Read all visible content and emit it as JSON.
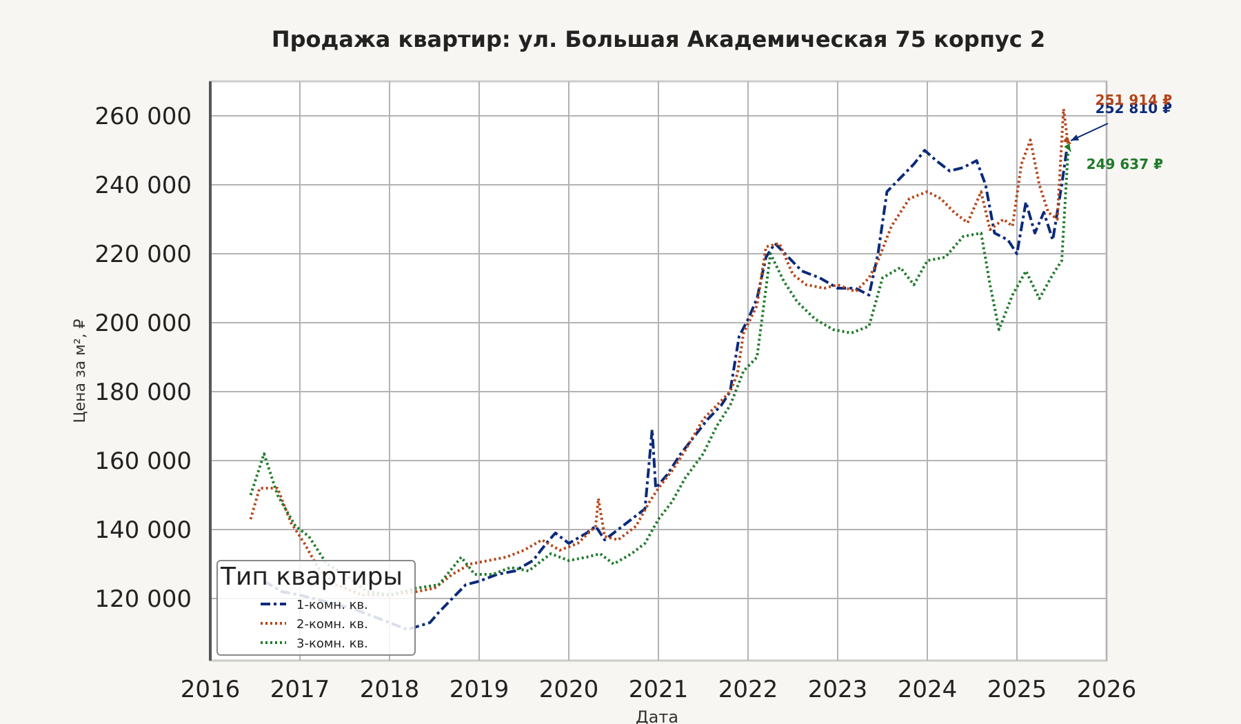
{
  "chart_data": {
    "type": "line",
    "title": "Продажа квартир: ул. Большая Академическая 75 корпус 2",
    "xlabel": "Дата",
    "ylabel": "Цена за м², ₽",
    "xlim": [
      2016,
      2026
    ],
    "ylim": [
      102000,
      270000
    ],
    "x_ticks": [
      "2016",
      "2017",
      "2018",
      "2019",
      "2020",
      "2021",
      "2022",
      "2023",
      "2024",
      "2025",
      "2026"
    ],
    "y_ticks": [
      {
        "value": 120000,
        "label": "120 000"
      },
      {
        "value": 140000,
        "label": "140 000"
      },
      {
        "value": 160000,
        "label": "160 000"
      },
      {
        "value": 180000,
        "label": "180 000"
      },
      {
        "value": 200000,
        "label": "200 000"
      },
      {
        "value": 220000,
        "label": "220 000"
      },
      {
        "value": 240000,
        "label": "240 000"
      },
      {
        "value": 260000,
        "label": "260 000"
      }
    ],
    "grid": true,
    "legend": {
      "title": "Тип квартиры",
      "placement": "bottom-left"
    },
    "series": [
      {
        "name": "1-комн. кв.",
        "color": "#0a2a7a",
        "style": "dashdot",
        "end_label": "252 810 ₽",
        "points": [
          [
            2016.6,
            125000
          ],
          [
            2016.8,
            122000
          ],
          [
            2017.0,
            121000
          ],
          [
            2017.3,
            119000
          ],
          [
            2017.6,
            117000
          ],
          [
            2017.9,
            114000
          ],
          [
            2018.2,
            111000
          ],
          [
            2018.45,
            113000
          ],
          [
            2018.55,
            116000
          ],
          [
            2018.7,
            120000
          ],
          [
            2018.85,
            124000
          ],
          [
            2019.0,
            125000
          ],
          [
            2019.2,
            127000
          ],
          [
            2019.4,
            128000
          ],
          [
            2019.6,
            131000
          ],
          [
            2019.75,
            136000
          ],
          [
            2019.85,
            139000
          ],
          [
            2020.0,
            136000
          ],
          [
            2020.2,
            139000
          ],
          [
            2020.3,
            141000
          ],
          [
            2020.4,
            137000
          ],
          [
            2020.5,
            139000
          ],
          [
            2020.7,
            143000
          ],
          [
            2020.85,
            146000
          ],
          [
            2020.93,
            169000
          ],
          [
            2020.97,
            152000
          ],
          [
            2021.1,
            156000
          ],
          [
            2021.25,
            162000
          ],
          [
            2021.4,
            167000
          ],
          [
            2021.55,
            172000
          ],
          [
            2021.7,
            176000
          ],
          [
            2021.8,
            180000
          ],
          [
            2021.9,
            196000
          ],
          [
            2022.0,
            201000
          ],
          [
            2022.1,
            207000
          ],
          [
            2022.2,
            219000
          ],
          [
            2022.3,
            223000
          ],
          [
            2022.45,
            219000
          ],
          [
            2022.6,
            215000
          ],
          [
            2022.8,
            213000
          ],
          [
            2023.0,
            210000
          ],
          [
            2023.2,
            210000
          ],
          [
            2023.35,
            208000
          ],
          [
            2023.45,
            220000
          ],
          [
            2023.55,
            238000
          ],
          [
            2023.7,
            242000
          ],
          [
            2023.85,
            246000
          ],
          [
            2023.97,
            250000
          ],
          [
            2024.1,
            247000
          ],
          [
            2024.25,
            244000
          ],
          [
            2024.4,
            245000
          ],
          [
            2024.55,
            247000
          ],
          [
            2024.65,
            240000
          ],
          [
            2024.75,
            226000
          ],
          [
            2024.9,
            224000
          ],
          [
            2025.0,
            220000
          ],
          [
            2025.1,
            235000
          ],
          [
            2025.2,
            226000
          ],
          [
            2025.3,
            232000
          ],
          [
            2025.4,
            224000
          ],
          [
            2025.5,
            240000
          ],
          [
            2025.57,
            252810
          ]
        ]
      },
      {
        "name": "2-комн. кв.",
        "color": "#b5461a",
        "style": "dotted",
        "end_label": "251 914 ₽",
        "points": [
          [
            2016.45,
            143000
          ],
          [
            2016.55,
            152000
          ],
          [
            2016.75,
            152000
          ],
          [
            2016.9,
            142000
          ],
          [
            2017.05,
            136000
          ],
          [
            2017.2,
            129000
          ],
          [
            2017.4,
            124000
          ],
          [
            2017.7,
            121000
          ],
          [
            2018.0,
            121000
          ],
          [
            2018.3,
            122000
          ],
          [
            2018.5,
            123000
          ],
          [
            2018.7,
            127000
          ],
          [
            2018.9,
            130000
          ],
          [
            2019.1,
            131000
          ],
          [
            2019.3,
            132000
          ],
          [
            2019.5,
            134000
          ],
          [
            2019.7,
            137000
          ],
          [
            2019.9,
            134000
          ],
          [
            2020.1,
            136000
          ],
          [
            2020.3,
            141000
          ],
          [
            2020.33,
            149000
          ],
          [
            2020.4,
            138000
          ],
          [
            2020.55,
            137000
          ],
          [
            2020.75,
            141000
          ],
          [
            2020.9,
            148000
          ],
          [
            2021.0,
            152000
          ],
          [
            2021.15,
            157000
          ],
          [
            2021.3,
            163000
          ],
          [
            2021.5,
            172000
          ],
          [
            2021.65,
            176000
          ],
          [
            2021.8,
            180000
          ],
          [
            2021.88,
            185000
          ],
          [
            2021.95,
            197000
          ],
          [
            2022.1,
            205000
          ],
          [
            2022.2,
            222000
          ],
          [
            2022.35,
            223000
          ],
          [
            2022.5,
            214000
          ],
          [
            2022.65,
            211000
          ],
          [
            2022.85,
            210000
          ],
          [
            2023.0,
            211000
          ],
          [
            2023.2,
            209000
          ],
          [
            2023.35,
            213000
          ],
          [
            2023.45,
            218000
          ],
          [
            2023.6,
            228000
          ],
          [
            2023.8,
            236000
          ],
          [
            2024.0,
            238000
          ],
          [
            2024.15,
            236000
          ],
          [
            2024.3,
            232000
          ],
          [
            2024.45,
            229000
          ],
          [
            2024.6,
            238000
          ],
          [
            2024.7,
            227000
          ],
          [
            2024.85,
            230000
          ],
          [
            2024.95,
            228000
          ],
          [
            2025.05,
            246000
          ],
          [
            2025.15,
            253000
          ],
          [
            2025.25,
            240000
          ],
          [
            2025.35,
            232000
          ],
          [
            2025.45,
            230000
          ],
          [
            2025.52,
            262000
          ],
          [
            2025.57,
            251914
          ]
        ]
      },
      {
        "name": "3-комн. кв.",
        "color": "#1f7a2a",
        "style": "dotted",
        "end_label": "249 637 ₽",
        "points": [
          [
            2016.45,
            150000
          ],
          [
            2016.6,
            162000
          ],
          [
            2016.75,
            150000
          ],
          [
            2016.95,
            141000
          ],
          [
            2017.1,
            138000
          ],
          [
            2017.3,
            130000
          ],
          [
            2017.5,
            127000
          ],
          [
            2017.75,
            122000
          ],
          [
            2018.0,
            121000
          ],
          [
            2018.3,
            123000
          ],
          [
            2018.55,
            124000
          ],
          [
            2018.8,
            132000
          ],
          [
            2018.95,
            127000
          ],
          [
            2019.15,
            127000
          ],
          [
            2019.35,
            129000
          ],
          [
            2019.55,
            128000
          ],
          [
            2019.8,
            133000
          ],
          [
            2020.0,
            131000
          ],
          [
            2020.2,
            132000
          ],
          [
            2020.35,
            133000
          ],
          [
            2020.5,
            130000
          ],
          [
            2020.7,
            133000
          ],
          [
            2020.85,
            136000
          ],
          [
            2021.0,
            143000
          ],
          [
            2021.15,
            148000
          ],
          [
            2021.3,
            155000
          ],
          [
            2021.5,
            162000
          ],
          [
            2021.65,
            170000
          ],
          [
            2021.8,
            176000
          ],
          [
            2021.95,
            186000
          ],
          [
            2022.1,
            190000
          ],
          [
            2022.25,
            220000
          ],
          [
            2022.4,
            212000
          ],
          [
            2022.55,
            206000
          ],
          [
            2022.75,
            201000
          ],
          [
            2022.95,
            198000
          ],
          [
            2023.15,
            197000
          ],
          [
            2023.35,
            199000
          ],
          [
            2023.5,
            213000
          ],
          [
            2023.7,
            216000
          ],
          [
            2023.85,
            211000
          ],
          [
            2024.0,
            218000
          ],
          [
            2024.2,
            219000
          ],
          [
            2024.4,
            225000
          ],
          [
            2024.6,
            226000
          ],
          [
            2024.7,
            211000
          ],
          [
            2024.8,
            198000
          ],
          [
            2024.95,
            208000
          ],
          [
            2025.1,
            215000
          ],
          [
            2025.25,
            207000
          ],
          [
            2025.4,
            214000
          ],
          [
            2025.5,
            218000
          ],
          [
            2025.57,
            249637
          ]
        ]
      }
    ]
  }
}
